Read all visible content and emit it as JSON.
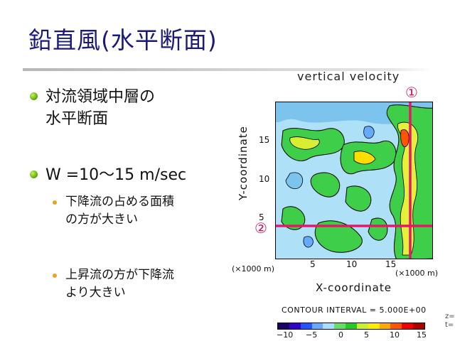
{
  "slide": {
    "title": "鉛直風(水平断面)",
    "bullets": [
      {
        "line1": "対流領域中層の",
        "line2": "水平断面"
      },
      {
        "line1": "W =10～15 m/sec"
      }
    ],
    "subbullets": [
      {
        "line1": "下降流の占める面積",
        "line2": "の方が大きい"
      },
      {
        "line1": "上昇流の方が下降流",
        "line2": "より大きい"
      }
    ]
  },
  "figure": {
    "title": "vertical velocity",
    "marker_1": "①",
    "marker_2": "②",
    "xlabel": "X-coordinate",
    "ylabel": "Y-coordinate",
    "x_unit": "(×1000 m)",
    "y_unit": "(×1000 m)",
    "x_ticks": [
      "5",
      "10",
      "15"
    ],
    "y_ticks": [
      "15",
      "10",
      "5"
    ],
    "contour_interval": "CONTOUR INTERVAL = 5.000E+00",
    "side_labels": [
      "z=",
      "t="
    ],
    "colorbar_ticks": [
      "−10",
      "−5",
      "0",
      "5",
      "10",
      "15"
    ],
    "colorbar_colors": [
      "#1a0066",
      "#3300cc",
      "#2255ff",
      "#66aaff",
      "#aaddff",
      "#66dd66",
      "#22cc22",
      "#ccee33",
      "#ffee00",
      "#ffaa00",
      "#ff5500",
      "#ee0000",
      "#aa0000"
    ],
    "colors": {
      "title": "#1a1a7a",
      "marker": "#d0145a",
      "bullet": "#56a800",
      "subbullet": "#f0a020"
    }
  }
}
